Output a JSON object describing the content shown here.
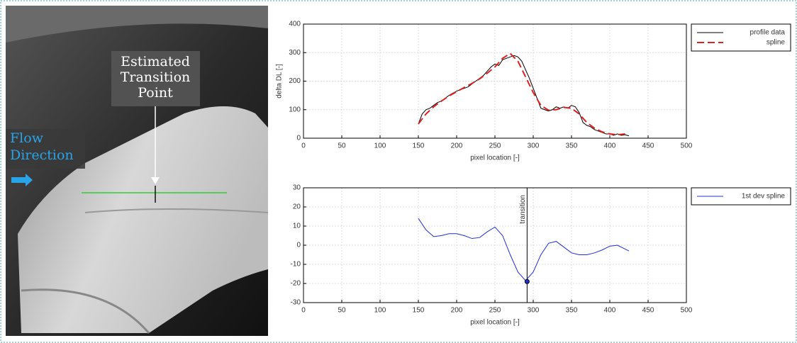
{
  "image": {
    "annotations": [
      {
        "lines": [
          "Estimated",
          "Transition",
          "Point"
        ]
      },
      {
        "lines": [
          "Flow",
          "Direction"
        ]
      }
    ]
  },
  "chart_data": [
    {
      "type": "line",
      "xlabel": "pixel location [-]",
      "ylabel": "delta DL [-]",
      "xlim": [
        0,
        500
      ],
      "xticks": [
        0,
        50,
        100,
        150,
        200,
        250,
        300,
        350,
        400,
        450,
        500
      ],
      "ylim": [
        0,
        400
      ],
      "yticks": [
        0,
        100,
        200,
        300,
        400
      ],
      "grid": true,
      "legend": "outside-right",
      "series": [
        {
          "name": "profile data",
          "color": "#000000",
          "x": [
            150,
            155,
            160,
            165,
            170,
            175,
            180,
            185,
            190,
            195,
            200,
            205,
            210,
            215,
            220,
            225,
            230,
            235,
            240,
            245,
            250,
            255,
            260,
            265,
            270,
            275,
            280,
            285,
            290,
            295,
            300,
            305,
            310,
            315,
            320,
            325,
            330,
            335,
            340,
            345,
            350,
            355,
            360,
            365,
            370,
            375,
            380,
            385,
            390,
            395,
            400,
            405,
            410,
            415,
            420,
            425
          ],
          "values": [
            50,
            85,
            100,
            105,
            115,
            125,
            130,
            140,
            150,
            158,
            165,
            170,
            175,
            180,
            190,
            200,
            210,
            220,
            235,
            250,
            260,
            255,
            275,
            280,
            285,
            290,
            285,
            270,
            240,
            210,
            175,
            140,
            105,
            100,
            95,
            100,
            110,
            105,
            110,
            105,
            115,
            110,
            90,
            55,
            45,
            40,
            30,
            25,
            20,
            15,
            15,
            10,
            15,
            10,
            12,
            8
          ]
        },
        {
          "name": "spline",
          "color": "#e02020",
          "dashed": true,
          "x": [
            150,
            160,
            170,
            180,
            190,
            200,
            210,
            220,
            230,
            240,
            250,
            260,
            270,
            280,
            290,
            300,
            310,
            320,
            330,
            340,
            350,
            360,
            370,
            380,
            390,
            400,
            410,
            420
          ],
          "values": [
            50,
            85,
            110,
            130,
            148,
            163,
            178,
            192,
            208,
            228,
            250,
            280,
            297,
            270,
            215,
            160,
            115,
            98,
            100,
            108,
            105,
            85,
            55,
            35,
            22,
            15,
            12,
            15
          ]
        }
      ]
    },
    {
      "type": "line",
      "xlabel": "pixel location [-]",
      "xlim": [
        0,
        500
      ],
      "xticks": [
        0,
        50,
        100,
        150,
        200,
        250,
        300,
        350,
        400,
        450,
        500
      ],
      "ylim": [
        -30,
        30
      ],
      "yticks": [
        -30,
        -20,
        -10,
        0,
        10,
        20,
        30
      ],
      "grid": true,
      "legend": "outside-right",
      "series": [
        {
          "name": "1st dev spline",
          "color": "#2030d0",
          "x": [
            150,
            160,
            170,
            180,
            190,
            200,
            210,
            220,
            230,
            240,
            250,
            260,
            270,
            280,
            290,
            300,
            310,
            320,
            330,
            340,
            350,
            360,
            370,
            380,
            390,
            400,
            410,
            420,
            425
          ],
          "values": [
            14,
            8,
            4.5,
            5,
            6,
            6,
            5,
            3.5,
            4,
            7,
            9.5,
            5,
            -5,
            -14,
            -18.5,
            -14,
            -5,
            1,
            2,
            -1,
            -4,
            -5,
            -5,
            -4,
            -2.5,
            -0.5,
            0,
            -2,
            -3
          ]
        }
      ],
      "annotations": [
        {
          "text": "transition",
          "x": 292,
          "y": -19
        }
      ]
    }
  ]
}
